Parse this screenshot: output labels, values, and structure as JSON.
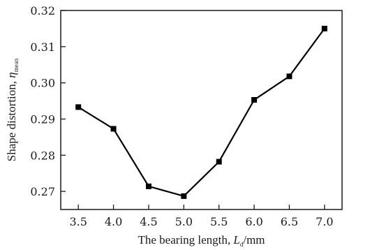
{
  "chart_data": {
    "type": "line",
    "title": "",
    "xlabel": {
      "main": "The bearing length, ",
      "var": "L",
      "sub": "d",
      "unit": "/mm"
    },
    "ylabel": {
      "main": "Shape distortion, ",
      "var": "η",
      "sub": "mean"
    },
    "xlim": [
      3.25,
      7.25
    ],
    "ylim": [
      0.265,
      0.32
    ],
    "xticks": [
      "3.5",
      "4.0",
      "4.5",
      "5.0",
      "5.5",
      "6.0",
      "6.5",
      "7.0"
    ],
    "yticks": [
      "0.27",
      "0.28",
      "0.29",
      "0.30",
      "0.31",
      "0.32"
    ],
    "grid": false,
    "series": [
      {
        "marker": "square",
        "color": "#000000",
        "x": [
          3.5,
          4.0,
          4.5,
          5.0,
          5.5,
          6.0,
          6.5,
          7.0
        ],
        "y": [
          0.2933,
          0.2873,
          0.2714,
          0.2687,
          0.2782,
          0.2953,
          0.3018,
          0.315
        ]
      }
    ]
  }
}
